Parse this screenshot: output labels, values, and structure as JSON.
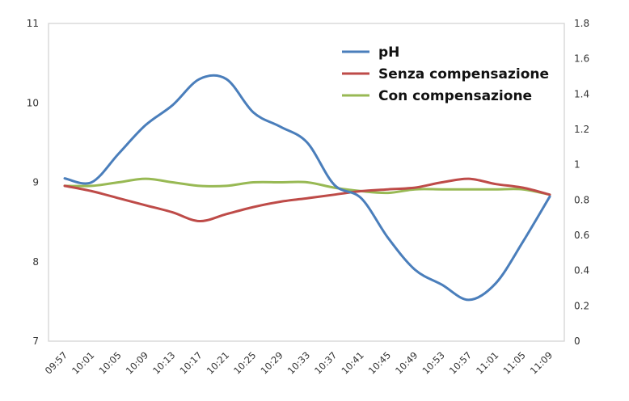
{
  "chart_data": {
    "type": "line",
    "title": "",
    "xlabel": "",
    "ylabel": "",
    "y2label": "",
    "ylim": [
      7,
      11
    ],
    "y2lim": [
      0,
      1.8
    ],
    "yticks": [
      "7",
      "8",
      "9",
      "10",
      "11"
    ],
    "y2ticks": [
      "0",
      "0.2",
      "0.4",
      "0.6",
      "0.8",
      "1",
      "1.2",
      "1.4",
      "1.6",
      "1.8"
    ],
    "grid": false,
    "legend_position": "top-right",
    "categories": [
      "09:57",
      "10:01",
      "10:05",
      "10:09",
      "10:13",
      "10:17",
      "10:21",
      "10:25",
      "10:29",
      "10:33",
      "10:37",
      "10:41",
      "10:45",
      "10:49",
      "10:53",
      "10:57",
      "11:01",
      "11:05",
      "11:09"
    ],
    "series": [
      {
        "name": "pH",
        "axis": "left",
        "color": "#4a7ebb",
        "values": [
          9.05,
          9.0,
          9.36,
          9.72,
          9.97,
          10.3,
          10.3,
          9.88,
          9.7,
          9.5,
          8.97,
          8.8,
          8.3,
          7.9,
          7.71,
          7.52,
          7.73,
          8.25,
          8.82
        ]
      },
      {
        "name": "Senza compensazione",
        "axis": "right",
        "color": "#be4b48",
        "values": [
          0.88,
          0.85,
          0.81,
          0.77,
          0.73,
          0.68,
          0.72,
          0.76,
          0.79,
          0.81,
          0.83,
          0.85,
          0.86,
          0.87,
          0.9,
          0.92,
          0.89,
          0.87,
          0.83
        ]
      },
      {
        "name": "Con compensazione",
        "axis": "right",
        "color": "#98b954",
        "values": [
          0.88,
          0.88,
          0.9,
          0.92,
          0.9,
          0.88,
          0.88,
          0.9,
          0.9,
          0.9,
          0.87,
          0.85,
          0.84,
          0.86,
          0.86,
          0.86,
          0.86,
          0.86,
          0.83
        ]
      }
    ]
  }
}
